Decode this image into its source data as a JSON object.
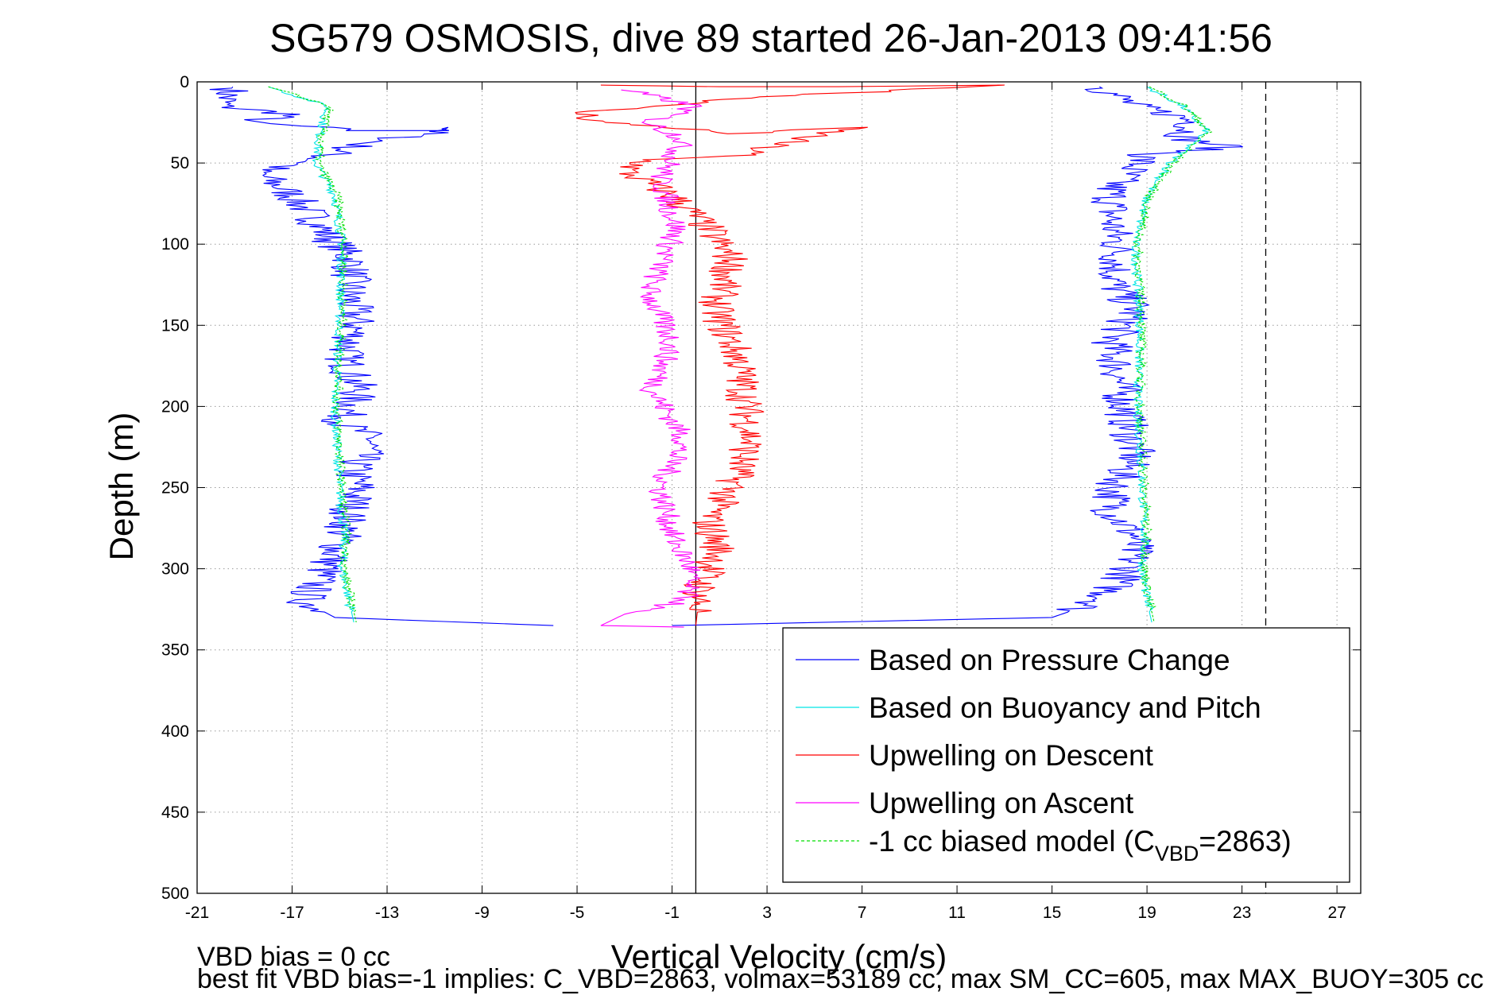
{
  "chart_data": {
    "type": "line",
    "title": "SG579 OSMOSIS, dive 89 started 26-Jan-2013 09:41:56",
    "xlabel": "Vertical Velocity (cm/s)",
    "ylabel": "Depth (m)",
    "xlim": [
      -21,
      28
    ],
    "ylim": [
      0,
      500
    ],
    "y_reversed": true,
    "grid": true,
    "legend_position": "bottom-right",
    "xticks": [
      -21,
      -17,
      -13,
      -9,
      -5,
      -1,
      3,
      7,
      11,
      15,
      19,
      23,
      27
    ],
    "yticks": [
      0,
      50,
      100,
      150,
      200,
      250,
      300,
      350,
      400,
      450,
      500
    ],
    "reference_lines": {
      "solid_x": 0,
      "dashed_x": 24
    },
    "series": [
      {
        "name": "Based on Pressure Change",
        "color": "#0000ff",
        "style": "solid",
        "segments": [
          {
            "x": [
              -19.5,
              -20.0,
              -17.0,
              -19.0,
              -16.0,
              -14.5,
              -11.0,
              -9.8,
              -14.0,
              -16.5,
              -18.5,
              -17.0,
              -16.0,
              -15.5,
              -14.5,
              -14.6,
              -14.3,
              -14.8,
              -14.2,
              -14.9,
              -13.6,
              -14.5,
              -14.2,
              -14.7,
              -15.0,
              -15.6,
              -16.5,
              -15.2,
              -6.0
            ],
            "y": [
              3,
              15,
              20,
              25,
              28,
              30,
              30,
              28,
              38,
              50,
              55,
              70,
              85,
              95,
              110,
              130,
              150,
              170,
              190,
              210,
              220,
              240,
              250,
              270,
              285,
              300,
              320,
              330,
              335
            ]
          },
          {
            "x": [
              17.0,
              18.5,
              20.0,
              21.0,
              20.5,
              22.5,
              19.0,
              17.5,
              17.5,
              17.8,
              17.6,
              18.5,
              17.5,
              17.8,
              18.0,
              18.5,
              17.6,
              17.5,
              18.5,
              18.3,
              17.0,
              15.0,
              -1.0
            ],
            "y": [
              3,
              15,
              20,
              25,
              35,
              40,
              45,
              65,
              85,
              105,
              125,
              140,
              160,
              180,
              200,
              230,
              250,
              265,
              280,
              300,
              320,
              330,
              335
            ]
          }
        ]
      },
      {
        "name": "Based on Buoyancy and Pitch",
        "color": "#00e5e5",
        "style": "solid",
        "segments": [
          {
            "x": [
              -18.0,
              -15.5,
              -15.8,
              -16.0,
              -15.2,
              -14.9,
              -15.0,
              -15.2,
              -15.0,
              -14.8,
              -14.9,
              -14.6,
              -14.4
            ],
            "y": [
              3,
              15,
              30,
              50,
              70,
              100,
              150,
              200,
              250,
              280,
              300,
              320,
              333
            ]
          },
          {
            "x": [
              19.0,
              20.5,
              21.5,
              20.0,
              19.0,
              18.5,
              18.7,
              18.6,
              18.8,
              18.9,
              18.8,
              19.0,
              19.2
            ],
            "y": [
              3,
              15,
              30,
              50,
              70,
              100,
              150,
              200,
              250,
              280,
              300,
              320,
              333
            ]
          }
        ]
      },
      {
        "name": "Upwelling on Descent",
        "color": "#ff0000",
        "style": "solid",
        "segments": [
          {
            "x": [
              -4.0,
              1.0,
              6.0,
              13.0,
              2.0,
              -1.0,
              -5.0,
              -4.0,
              -1.0,
              1.5,
              6.5,
              3.0,
              2.0,
              -2.0,
              -3.0,
              -1.0,
              0.5,
              1.5,
              0.8,
              1.8,
              2.0,
              2.3,
              1.5,
              0.5,
              1.0,
              0.2,
              0.0
            ],
            "y": [
              2,
              3,
              3,
              2,
              10,
              15,
              18,
              25,
              28,
              32,
              28,
              40,
              45,
              48,
              55,
              70,
              90,
              110,
              140,
              170,
              190,
              220,
              250,
              270,
              290,
              310,
              335
            ]
          }
        ]
      },
      {
        "name": "Upwelling on Ascent",
        "color": "#ff00ff",
        "style": "solid",
        "segments": [
          {
            "x": [
              -3.0,
              0.0,
              -2.0,
              -0.5,
              -1.5,
              -0.8,
              -2.0,
              -1.0,
              -1.8,
              -0.5,
              -1.5,
              -1.0,
              -0.2,
              -0.5,
              -3.0,
              -4.0,
              -0.5
            ],
            "y": [
              5,
              15,
              25,
              35,
              60,
              90,
              130,
              160,
              190,
              220,
              250,
              280,
              300,
              320,
              328,
              335,
              336
            ]
          }
        ]
      },
      {
        "name": "-1 cc biased model (C_VBD=2863)",
        "color": "#00dd00",
        "style": "dashed",
        "segments": [
          {
            "x": [
              -18.0,
              -15.4,
              -15.7,
              -15.9,
              -15.1,
              -14.8,
              -14.9,
              -15.1,
              -14.9,
              -14.7,
              -14.8,
              -14.5,
              -14.3
            ],
            "y": [
              3,
              15,
              30,
              50,
              70,
              100,
              150,
              200,
              250,
              280,
              300,
              320,
              333
            ]
          },
          {
            "x": [
              19.1,
              20.6,
              21.6,
              20.1,
              19.1,
              18.6,
              18.8,
              18.7,
              18.9,
              19.0,
              18.9,
              19.1,
              19.3
            ],
            "y": [
              3,
              15,
              30,
              50,
              70,
              100,
              150,
              200,
              250,
              280,
              300,
              320,
              333
            ]
          }
        ]
      }
    ],
    "legend": [
      {
        "label": "Based on Pressure Change",
        "color": "#0000ff",
        "style": "solid"
      },
      {
        "label": "Based on Buoyancy and Pitch",
        "color": "#00e5e5",
        "style": "solid"
      },
      {
        "label": "Upwelling on Descent",
        "color": "#ff0000",
        "style": "solid"
      },
      {
        "label": "Upwelling on Ascent",
        "color": "#ff00ff",
        "style": "solid"
      },
      {
        "label": "-1 cc biased model (C",
        "sub": "VBD",
        "suffix": "=2863)",
        "color": "#00dd00",
        "style": "dashed"
      }
    ],
    "annotations": [
      "VBD bias = 0 cc",
      "best fit VBD bias=-1 implies: C_VBD=2863, volmax=53189 cc, max SM_CC=605, max MAX_BUOY=305 cc"
    ]
  }
}
